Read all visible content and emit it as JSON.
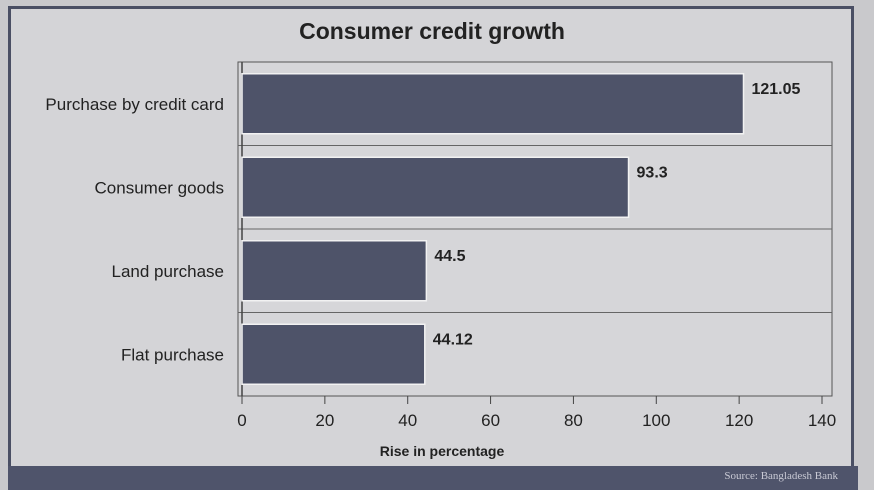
{
  "chart_data": {
    "type": "bar",
    "orientation": "horizontal",
    "title": "Consumer credit growth",
    "categories": [
      "Purchase by credit card",
      "Consumer goods",
      "Land purchase",
      "Flat purchase"
    ],
    "values": [
      121.05,
      93.3,
      44.5,
      44.12
    ],
    "value_labels": [
      "121.05",
      "93.3",
      "44.5",
      "44.12"
    ],
    "xlabel": "Rise in percentage",
    "ylabel": "",
    "xlim": [
      0,
      140
    ],
    "xticks": [
      "0",
      "20",
      "40",
      "60",
      "80",
      "100",
      "120",
      "140"
    ],
    "grid": true,
    "bar_color": "#4e5369",
    "plot_bg": "#d6d6d9"
  },
  "source": "Source: Bangladesh Bank"
}
